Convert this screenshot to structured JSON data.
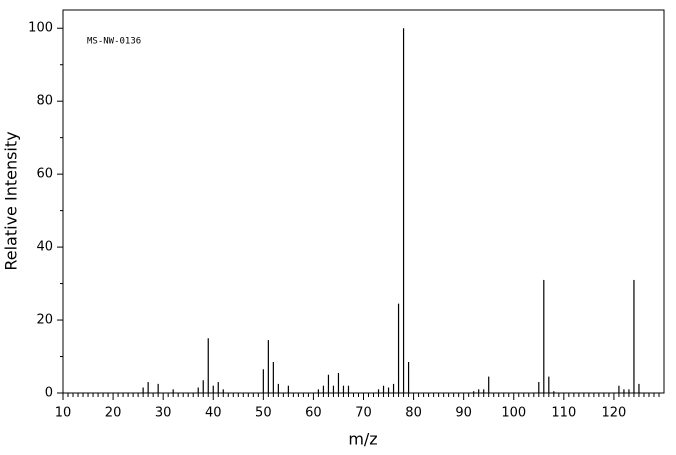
{
  "chart_data": {
    "type": "bar",
    "annotation": "MS-NW-0136",
    "x_label": "m/z",
    "y_label": "Relative Intensity",
    "x": [
      26,
      27,
      29,
      32,
      37,
      38,
      39,
      40,
      41,
      42,
      50,
      51,
      52,
      53,
      55,
      61,
      62,
      63,
      64,
      65,
      66,
      67,
      73,
      74,
      75,
      76,
      77,
      78,
      79,
      92,
      93,
      94,
      95,
      105,
      106,
      107,
      108,
      121,
      122,
      123,
      124,
      125
    ],
    "values": [
      1.5,
      3,
      2.5,
      1,
      1.5,
      3.5,
      15,
      2,
      3,
      1,
      6.5,
      14.5,
      8.5,
      2.5,
      2,
      1,
      2,
      5,
      2,
      5.5,
      2,
      2,
      1,
      2,
      1.5,
      2.5,
      24.5,
      100,
      8.5,
      0.5,
      1,
      1,
      4.5,
      3,
      31,
      4.5,
      0.5,
      2,
      1,
      1,
      31,
      2.5
    ],
    "color": "#000000",
    "xlim": [
      10,
      130
    ],
    "xticks": [
      10,
      20,
      30,
      40,
      50,
      60,
      70,
      80,
      90,
      100,
      110,
      120
    ],
    "ylim": [
      0,
      105
    ],
    "yticks": [
      0,
      20,
      40,
      60,
      80,
      100
    ]
  }
}
